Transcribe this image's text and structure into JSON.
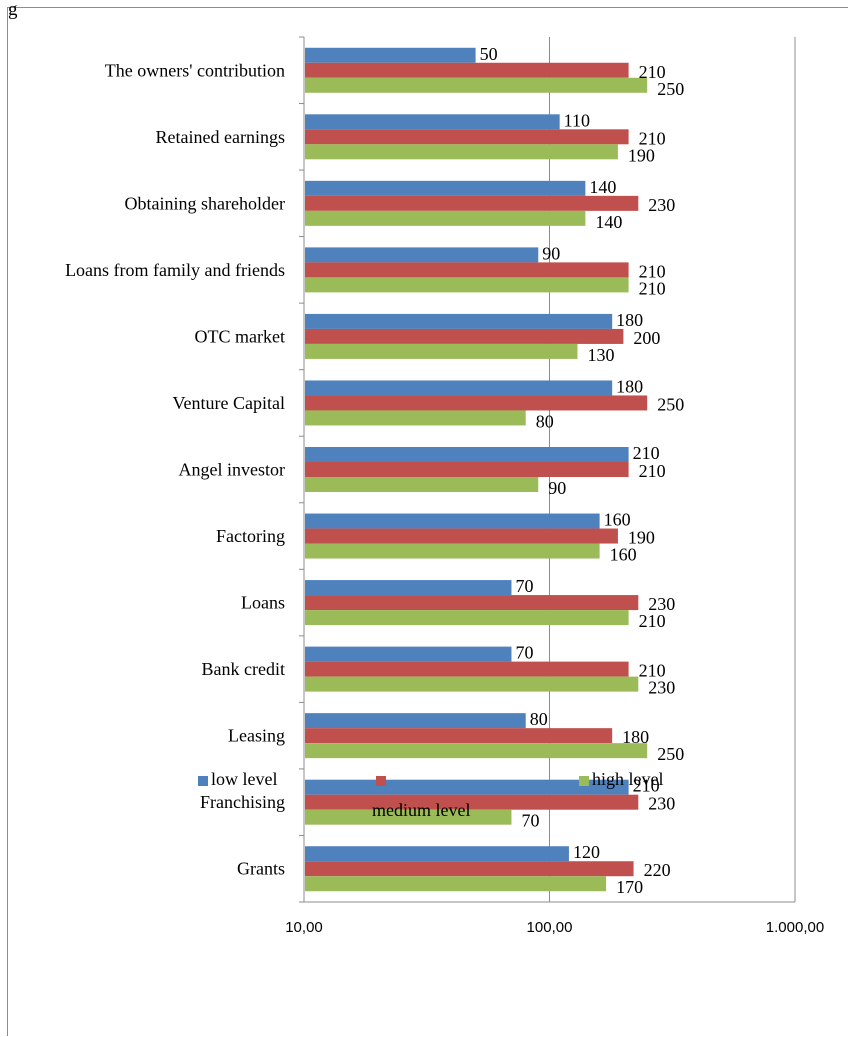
{
  "page_fragment": "g",
  "chart_data": {
    "type": "bar",
    "orientation": "horizontal",
    "x_scale": "log",
    "xlim": [
      10,
      1000
    ],
    "x_ticks": [
      10,
      100,
      1000
    ],
    "x_tick_labels": [
      "10,00",
      "100,00",
      "1.000,00"
    ],
    "grid": "vertical major gridlines",
    "legend_position": "bottom",
    "title": "",
    "xlabel": "",
    "ylabel": "",
    "categories": [
      "The owners' contribution",
      "Retained earnings",
      "Obtaining shareholder",
      "Loans from family and friends",
      "OTC market",
      "Venture Capital",
      "Angel investor",
      "Factoring",
      "Loans",
      "Bank credit",
      "Leasing",
      "Franchising",
      "Grants"
    ],
    "series": [
      {
        "name": "low level",
        "color": "#4f81bd",
        "values": [
          50,
          110,
          140,
          90,
          180,
          180,
          210,
          160,
          70,
          70,
          80,
          210,
          120
        ]
      },
      {
        "name": "medium level",
        "color": "#c0504d",
        "values": [
          210,
          210,
          230,
          210,
          200,
          250,
          210,
          190,
          230,
          210,
          180,
          230,
          220
        ]
      },
      {
        "name": "high level",
        "color": "#9bbb59",
        "values": [
          250,
          190,
          140,
          210,
          130,
          80,
          90,
          160,
          210,
          230,
          250,
          70,
          170
        ]
      }
    ]
  }
}
